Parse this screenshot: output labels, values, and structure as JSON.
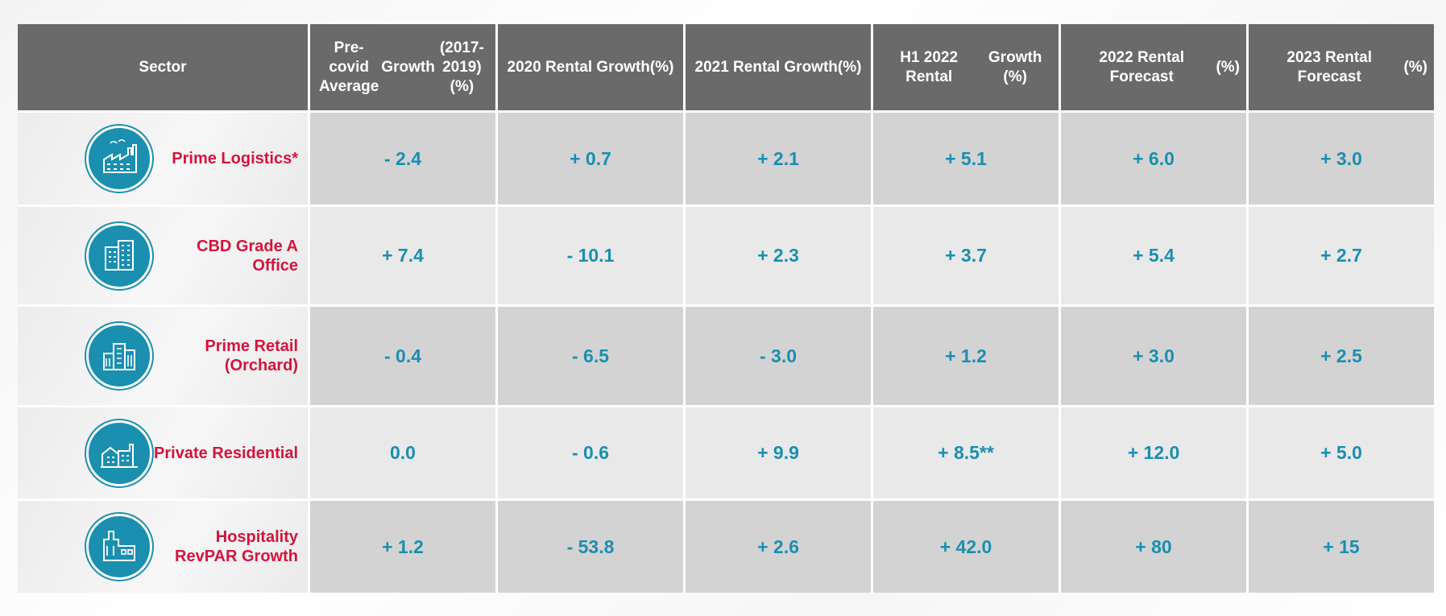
{
  "chart_data": {
    "type": "table",
    "title": "",
    "columns": [
      "Sector",
      "Pre-covid Average Growth (2017-2019) (%)",
      "2020 Rental Growth (%)",
      "2021 Rental Growth (%)",
      "H1 2022 Rental Growth (%)",
      "2022 Rental Forecast (%)",
      "2023 Rental Forecast (%)"
    ],
    "header_lines": [
      [
        "Sector"
      ],
      [
        "Pre-covid Average",
        "Growth",
        "(2017-2019) (%)"
      ],
      [
        "2020 Rental Growth",
        "(%)"
      ],
      [
        "2021 Rental Growth",
        "(%)"
      ],
      [
        "H1 2022 Rental",
        "Growth (%)"
      ],
      [
        "2022 Rental Forecast",
        "(%)"
      ],
      [
        "2023 Rental Forecast",
        "(%)"
      ]
    ],
    "rows": [
      {
        "sector_lines": [
          "Prime Logistics*"
        ],
        "icon": "factory-icon",
        "values": [
          "- 2.4",
          "+ 0.7",
          "+ 2.1",
          "+ 5.1",
          "+ 6.0",
          "+ 3.0"
        ]
      },
      {
        "sector_lines": [
          "CBD Grade A",
          "Office"
        ],
        "icon": "office-building-icon",
        "values": [
          "+ 7.4",
          "- 10.1",
          "+ 2.3",
          "+ 3.7",
          "+ 5.4",
          "+ 2.7"
        ]
      },
      {
        "sector_lines": [
          "Prime Retail",
          "(Orchard)"
        ],
        "icon": "retail-building-icon",
        "values": [
          "- 0.4",
          "- 6.5",
          "- 3.0",
          "+ 1.2",
          "+ 3.0",
          "+ 2.5"
        ]
      },
      {
        "sector_lines": [
          "Private Residential"
        ],
        "icon": "residential-icon",
        "values": [
          "0.0",
          "- 0.6",
          "+ 9.9",
          "+ 8.5**",
          "+ 12.0",
          "+ 5.0"
        ]
      },
      {
        "sector_lines": [
          "Hospitality",
          "RevPAR Growth"
        ],
        "icon": "hotel-icon",
        "values": [
          "+ 1.2",
          "- 53.8",
          "+ 2.6",
          "+ 42.0",
          "+ 80",
          "+ 15"
        ]
      }
    ]
  },
  "colors": {
    "header_bg": "#6a6a6a",
    "sector_text": "#d4143c",
    "value_text": "#1a8fb0",
    "icon_bg": "#1a8fb0"
  }
}
